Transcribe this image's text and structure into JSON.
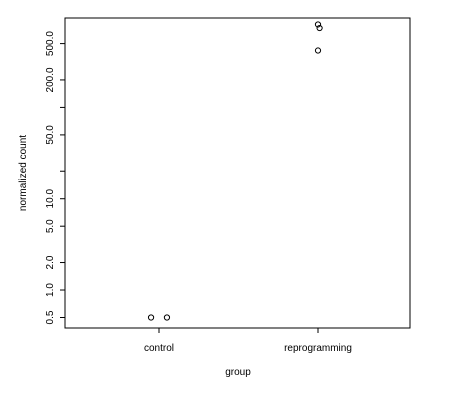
{
  "chart_data": {
    "type": "scatter",
    "xlabel": "group",
    "ylabel": "normalized count",
    "y_scale": "log",
    "categories": [
      "control",
      "reprogramming"
    ],
    "y_ticks": [
      0.5,
      1.0,
      2.0,
      5.0,
      10.0,
      20.0,
      50.0,
      100.0,
      200.0,
      500.0
    ],
    "y_tick_labels": [
      "0.5",
      "1.0",
      "2.0",
      "5.0",
      "10.0",
      "",
      "50.0",
      "",
      "200.0",
      "500.0"
    ],
    "ylim": [
      0.42,
      1100
    ],
    "grid": false,
    "legend": "none",
    "marker": "open-circle",
    "colors": {
      "axis": "#000000",
      "point": "#000000",
      "background": "#ffffff"
    },
    "points": [
      {
        "category": "control",
        "y": 0.5,
        "jitter": -0.05
      },
      {
        "category": "control",
        "y": 0.5,
        "jitter": 0.05
      },
      {
        "category": "reprogramming",
        "y": 810,
        "jitter": 0.0
      },
      {
        "category": "reprogramming",
        "y": 740,
        "jitter": 0.01
      },
      {
        "category": "reprogramming",
        "y": 420,
        "jitter": 0.0
      }
    ]
  }
}
